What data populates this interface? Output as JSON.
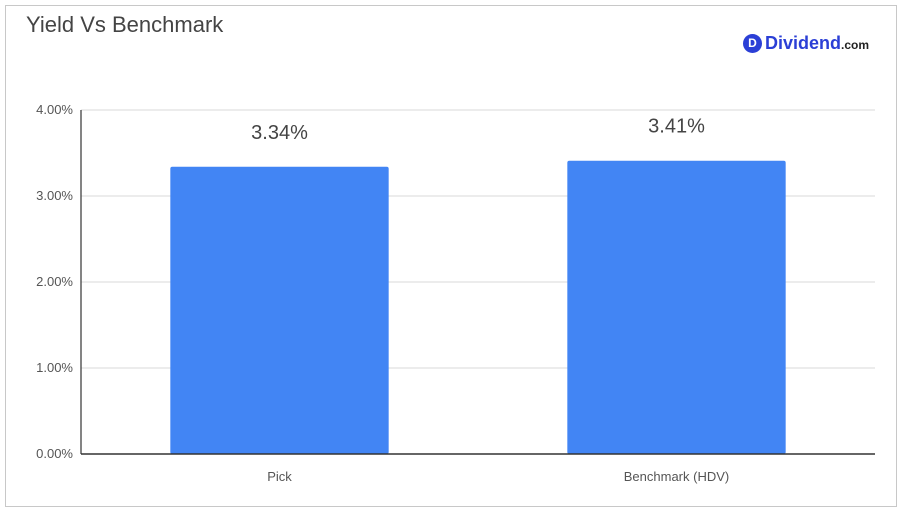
{
  "chart_data": {
    "type": "bar",
    "title": "Yield Vs Benchmark",
    "categories": [
      "Pick",
      "Benchmark (HDV)"
    ],
    "values": [
      3.34,
      3.41
    ],
    "data_labels": [
      "3.34%",
      "3.41%"
    ],
    "ylim": [
      0,
      4
    ],
    "yticks": [
      0,
      1,
      2,
      3,
      4
    ],
    "ytick_labels": [
      "0.00%",
      "1.00%",
      "2.00%",
      "3.00%",
      "4.00%"
    ],
    "grid": true,
    "bar_color": "#4285f4",
    "xlabel": "",
    "ylabel": ""
  },
  "logo": {
    "mark": "D",
    "main": "Dividend",
    "tld": ".com",
    "color": "#2b3fd6"
  }
}
